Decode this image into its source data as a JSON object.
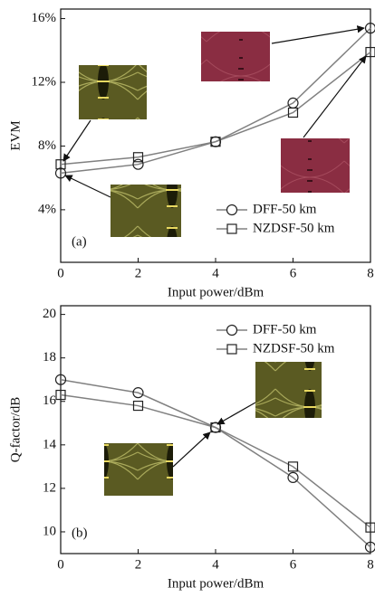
{
  "chart_data": [
    {
      "type": "line",
      "panel_label": "(a)",
      "x_label": "Input power/dBm",
      "y_label": "EVM",
      "xlim": [
        0,
        8
      ],
      "xticks": [
        0,
        2,
        4,
        6,
        8
      ],
      "ylim": [
        0.7,
        16.6
      ],
      "yticks": [
        {
          "value": 4,
          "label": "4%"
        },
        {
          "value": 8,
          "label": "8%"
        },
        {
          "value": 12,
          "label": "12%"
        },
        {
          "value": 16,
          "label": "16%"
        }
      ],
      "x": [
        0,
        2,
        4,
        6,
        8
      ],
      "legend": "lower right",
      "grid": false,
      "series": [
        {
          "name": "DFF-50 km",
          "color": "#808080",
          "marker": "circle",
          "values": [
            6.3,
            6.85,
            8.27,
            10.7,
            15.4
          ]
        },
        {
          "name": "NZDSF-50 km",
          "color": "#808080",
          "marker": "square",
          "values": [
            6.85,
            7.3,
            8.27,
            10.1,
            13.9
          ]
        }
      ]
    },
    {
      "type": "line",
      "panel_label": "(b)",
      "x_label": "Input power/dBm",
      "y_label": "Q-factor/dB",
      "xlim": [
        0,
        8
      ],
      "xticks": [
        0,
        2,
        4,
        6,
        8
      ],
      "ylim": [
        9,
        20.4
      ],
      "yticks": [
        10,
        12,
        14,
        16,
        18,
        20
      ],
      "x": [
        0,
        2,
        4,
        6,
        8
      ],
      "legend": "upper right",
      "grid": false,
      "series": [
        {
          "name": "DFF-50 km",
          "color": "#808080",
          "marker": "circle",
          "values": [
            17.0,
            16.4,
            14.8,
            12.5,
            9.3
          ]
        },
        {
          "name": "NZDSF-50 km",
          "color": "#808080",
          "marker": "square",
          "values": [
            16.3,
            15.8,
            14.8,
            13.0,
            10.2
          ]
        }
      ]
    }
  ]
}
